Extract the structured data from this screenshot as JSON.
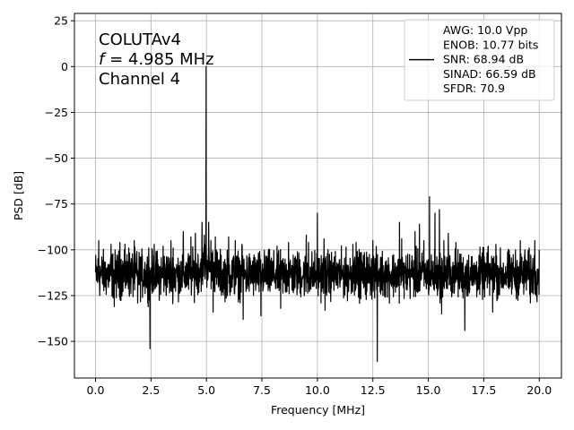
{
  "chart_data": {
    "type": "line",
    "title": "",
    "xlabel": "Frequency [MHz]",
    "ylabel": "PSD [dB]",
    "xlim": [
      -0.95,
      21
    ],
    "ylim": [
      -170,
      29
    ],
    "xticks": [
      0,
      2.5,
      5,
      7.5,
      10,
      12.5,
      15,
      17.5,
      20
    ],
    "xtick_labels": [
      "0.0",
      "2.5",
      "5.0",
      "7.5",
      "10.0",
      "12.5",
      "15.0",
      "17.5",
      "20.0"
    ],
    "yticks": [
      25,
      0,
      -25,
      -50,
      -75,
      -100,
      -125,
      -150
    ],
    "ytick_labels": [
      "25",
      "0",
      "−25",
      "−50",
      "−75",
      "−100",
      "−125",
      "−150"
    ],
    "grid": true,
    "series_color": "#000000",
    "noise_floor": {
      "center": -115,
      "min": -132,
      "max": -95
    },
    "series": [
      {
        "name": "AWG: 10.0 Vpp\nENOB: 10.77 bits\nSNR: 68.94 dB\nSINAD: 66.59 dB\nSFDR: 70.9",
        "x_range": [
          0,
          20
        ],
        "fundamental": {
          "x": 4.985,
          "y": 0
        },
        "peaks": [
          {
            "x": 0.15,
            "y": -95
          },
          {
            "x": 0.7,
            "y": -97
          },
          {
            "x": 0.85,
            "y": -131
          },
          {
            "x": 1.1,
            "y": -96
          },
          {
            "x": 1.3,
            "y": -100
          },
          {
            "x": 1.5,
            "y": -99
          },
          {
            "x": 1.75,
            "y": -95
          },
          {
            "x": 1.9,
            "y": -129
          },
          {
            "x": 2.4,
            "y": -99
          },
          {
            "x": 2.45,
            "y": -154
          },
          {
            "x": 2.65,
            "y": -97
          },
          {
            "x": 3.05,
            "y": -98
          },
          {
            "x": 3.4,
            "y": -95
          },
          {
            "x": 3.5,
            "y": -99
          },
          {
            "x": 3.95,
            "y": -90
          },
          {
            "x": 4.3,
            "y": -93
          },
          {
            "x": 4.5,
            "y": -91
          },
          {
            "x": 4.8,
            "y": -85
          },
          {
            "x": 4.9,
            "y": -92
          },
          {
            "x": 5.1,
            "y": -85
          },
          {
            "x": 5.2,
            "y": -95
          },
          {
            "x": 5.3,
            "y": -90
          },
          {
            "x": 5.4,
            "y": -93
          },
          {
            "x": 5.3,
            "y": -134
          },
          {
            "x": 6.0,
            "y": -93
          },
          {
            "x": 6.3,
            "y": -95
          },
          {
            "x": 6.6,
            "y": -97
          },
          {
            "x": 6.65,
            "y": -138
          },
          {
            "x": 7.45,
            "y": -136
          },
          {
            "x": 8.7,
            "y": -96
          },
          {
            "x": 8.35,
            "y": -132
          },
          {
            "x": 9.5,
            "y": -92
          },
          {
            "x": 9.6,
            "y": -96
          },
          {
            "x": 10.0,
            "y": -80
          },
          {
            "x": 10.3,
            "y": -94
          },
          {
            "x": 10.35,
            "y": -133
          },
          {
            "x": 11.6,
            "y": -97
          },
          {
            "x": 11.75,
            "y": -96
          },
          {
            "x": 12.5,
            "y": -95
          },
          {
            "x": 12.7,
            "y": -161
          },
          {
            "x": 13.7,
            "y": -85
          },
          {
            "x": 13.8,
            "y": -94
          },
          {
            "x": 14.4,
            "y": -90
          },
          {
            "x": 14.6,
            "y": -86
          },
          {
            "x": 14.8,
            "y": -95
          },
          {
            "x": 15.05,
            "y": -71
          },
          {
            "x": 15.3,
            "y": -80
          },
          {
            "x": 15.5,
            "y": -78
          },
          {
            "x": 15.6,
            "y": -83
          },
          {
            "x": 15.7,
            "y": -95
          },
          {
            "x": 15.6,
            "y": -135
          },
          {
            "x": 15.9,
            "y": -91
          },
          {
            "x": 16.25,
            "y": -96
          },
          {
            "x": 16.65,
            "y": -144
          },
          {
            "x": 17.5,
            "y": -99
          },
          {
            "x": 17.7,
            "y": -98
          },
          {
            "x": 17.9,
            "y": -134
          },
          {
            "x": 18.05,
            "y": -97
          },
          {
            "x": 19.15,
            "y": -95
          },
          {
            "x": 19.35,
            "y": -100
          },
          {
            "x": 19.6,
            "y": -129
          },
          {
            "x": 19.8,
            "y": -95
          },
          {
            "x": 20.0,
            "y": -100
          }
        ]
      }
    ],
    "legend_position": "upper right",
    "annotation": {
      "line1": "COLUTAv4",
      "line2_italic": "f",
      "line2_rest": " = 4.985 MHz",
      "line3": "Channel 4"
    }
  }
}
